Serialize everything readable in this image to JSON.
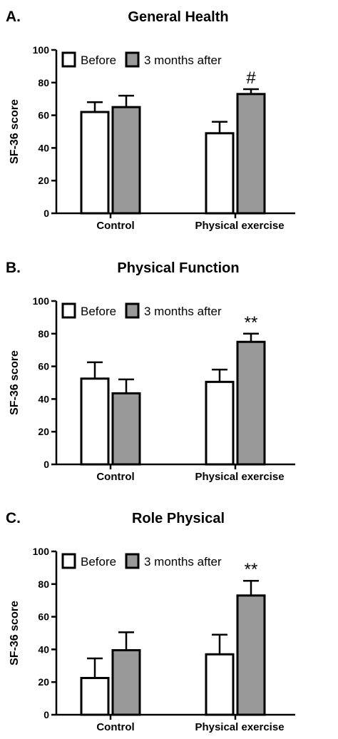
{
  "colors": {
    "before": "#ffffff",
    "after": "#999999",
    "stroke": "#000000"
  },
  "chart_data": [
    {
      "type": "bar",
      "panel_letter": "A.",
      "title": "General Health",
      "ylabel": "SF-36 score",
      "xlabel": "",
      "ylim": [
        0,
        100
      ],
      "yticks": [
        "0",
        "20",
        "40",
        "60",
        "80",
        "100"
      ],
      "categories": [
        "Control",
        "Physical exercise"
      ],
      "legend_position": "top-left",
      "series": [
        {
          "name": "Before",
          "color": "#ffffff",
          "values": [
            62,
            49
          ],
          "errors": [
            6,
            7
          ]
        },
        {
          "name": "3 months after",
          "color": "#999999",
          "values": [
            65,
            73
          ],
          "errors": [
            7,
            3
          ]
        }
      ],
      "annotations": [
        {
          "text": "#",
          "series": 1,
          "category": 1
        }
      ]
    },
    {
      "type": "bar",
      "panel_letter": "B.",
      "title": "Physical Function",
      "ylabel": "SF-36 score",
      "xlabel": "",
      "ylim": [
        0,
        100
      ],
      "yticks": [
        "0",
        "20",
        "40",
        "60",
        "80",
        "100"
      ],
      "categories": [
        "Control",
        "Physical exercise"
      ],
      "legend_position": "top-left",
      "series": [
        {
          "name": "Before",
          "color": "#ffffff",
          "values": [
            52.5,
            50.5
          ],
          "errors": [
            10,
            7.5
          ]
        },
        {
          "name": "3 months after",
          "color": "#999999",
          "values": [
            43.5,
            75
          ],
          "errors": [
            8.5,
            5
          ]
        }
      ],
      "annotations": [
        {
          "text": "**",
          "series": 1,
          "category": 1
        }
      ]
    },
    {
      "type": "bar",
      "panel_letter": "C.",
      "title": "Role Physical",
      "ylabel": "SF-36 score",
      "xlabel": "",
      "ylim": [
        0,
        100
      ],
      "yticks": [
        "0",
        "20",
        "40",
        "60",
        "80",
        "100"
      ],
      "categories": [
        "Control",
        "Physical exercise"
      ],
      "legend_position": "top-left",
      "series": [
        {
          "name": "Before",
          "color": "#ffffff",
          "values": [
            22.5,
            37
          ],
          "errors": [
            12,
            12
          ]
        },
        {
          "name": "3 months after",
          "color": "#999999",
          "values": [
            39.5,
            73
          ],
          "errors": [
            11,
            9
          ]
        }
      ],
      "annotations": [
        {
          "text": "**",
          "series": 1,
          "category": 1
        }
      ]
    }
  ]
}
